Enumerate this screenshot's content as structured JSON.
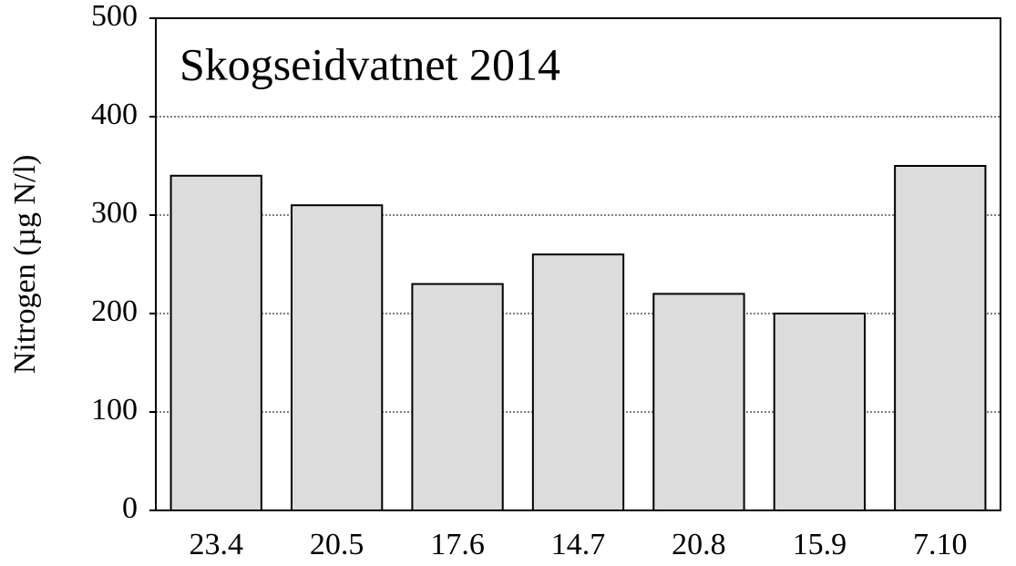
{
  "chart_data": {
    "type": "bar",
    "title": "Skogseidvatnet 2014",
    "y_label": "Nitrogen (µg N/l)",
    "categories": [
      "23.4",
      "20.5",
      "17.6",
      "14.7",
      "20.8",
      "15.9",
      "7.10"
    ],
    "values": [
      340,
      310,
      230,
      260,
      220,
      200,
      350
    ],
    "color": "#dcdcdc",
    "ylim": [
      0,
      500
    ],
    "yticks": [
      0,
      100,
      200,
      300,
      400,
      500
    ],
    "grid": true
  }
}
